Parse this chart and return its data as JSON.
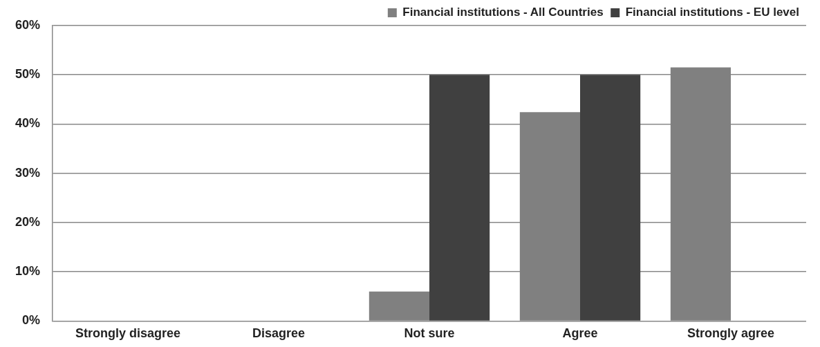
{
  "chart_data": {
    "type": "bar",
    "categories": [
      "Strongly disagree",
      "Disagree",
      "Not sure",
      "Agree",
      "Strongly agree"
    ],
    "series": [
      {
        "name": "Financial institutions - All Countries",
        "color": "#808080",
        "values": [
          0,
          0,
          6,
          42.4,
          51.5
        ]
      },
      {
        "name": "Financial institutions - EU level",
        "color": "#404040",
        "values": [
          0,
          0,
          50,
          50,
          0
        ]
      }
    ],
    "ylim": [
      0,
      60
    ],
    "yticks": [
      {
        "value": 0,
        "label": "0%"
      },
      {
        "value": 10,
        "label": "10%"
      },
      {
        "value": 20,
        "label": "20%"
      },
      {
        "value": 30,
        "label": "30%"
      },
      {
        "value": 40,
        "label": "40%"
      },
      {
        "value": 50,
        "label": "50%"
      },
      {
        "value": 60,
        "label": "60%"
      }
    ],
    "grid": "y",
    "legend": "top right"
  }
}
